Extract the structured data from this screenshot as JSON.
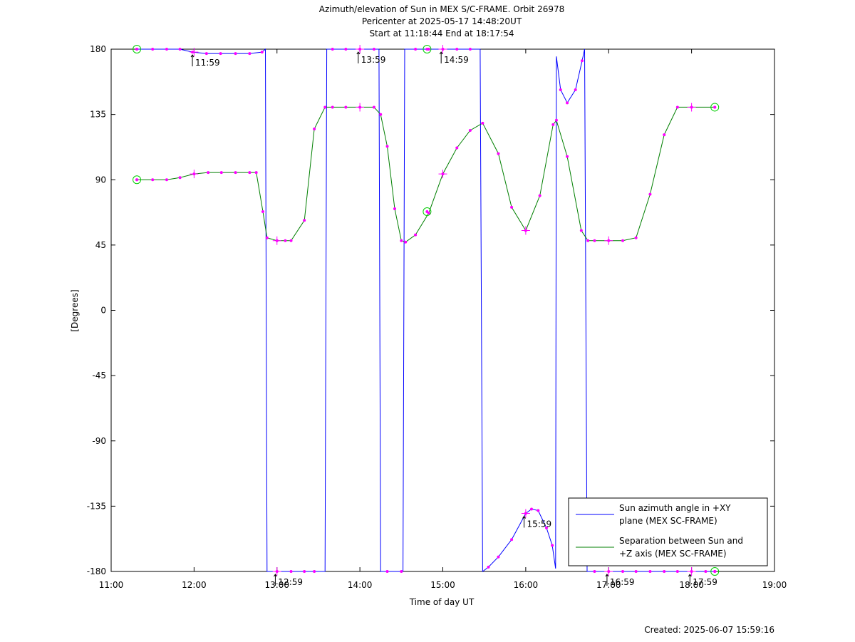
{
  "chart_data": {
    "type": "line",
    "title_lines": [
      "Azimuth/elevation of Sun in MEX S/C-FRAME.  Orbit 26978",
      "Pericenter at 2025-05-17 14:48:20UT",
      "Start at 11:18:44 End at 18:17:54"
    ],
    "xlabel": "Time of day UT",
    "ylabel": "[Degrees]",
    "footer": "Created: 2025-06-07 15:59:16",
    "xlim": [
      11.0,
      19.0
    ],
    "ylim": [
      -180,
      180
    ],
    "x_ticks": [
      11,
      12,
      13,
      14,
      15,
      16,
      17,
      18,
      19
    ],
    "x_tick_labels": [
      "11:00",
      "12:00",
      "13:00",
      "14:00",
      "15:00",
      "16:00",
      "17:00",
      "18:00",
      "19:00"
    ],
    "y_ticks": [
      180,
      135,
      90,
      45,
      0,
      -45,
      -90,
      -135,
      -180
    ],
    "y_tick_labels": [
      "180",
      "135",
      "90",
      "45",
      "0",
      "-45",
      "-90",
      "-135",
      "-180"
    ],
    "legend_position": "bottom-right",
    "series": [
      {
        "name": "Sun azimuth angle in +XY plane (MEX SC-FRAME)",
        "legend_lines": [
          "Sun azimuth angle in +XY",
          "plane (MEX SC-FRAME)"
        ],
        "color": "#0000ff",
        "x": [
          11.31,
          11.5,
          11.67,
          11.83,
          11.98,
          12.15,
          12.32,
          12.5,
          12.67,
          12.82,
          12.86,
          12.88,
          13.0,
          13.17,
          13.33,
          13.45,
          13.58,
          13.6,
          13.67,
          13.83,
          14.0,
          14.17,
          14.23,
          14.25,
          14.33,
          14.5,
          14.52,
          14.54,
          14.67,
          14.83,
          15.0,
          15.17,
          15.33,
          15.45,
          15.48,
          15.55,
          15.67,
          15.83,
          16.0,
          16.07,
          16.15,
          16.25,
          16.32,
          16.36,
          16.37,
          16.42,
          16.5,
          16.6,
          16.68,
          16.71,
          16.74,
          16.83,
          17.0,
          17.17,
          17.33,
          17.5,
          17.67,
          17.83,
          18.0,
          18.17,
          18.28
        ],
        "y": [
          180,
          180,
          180,
          180,
          178,
          177,
          177,
          177,
          177,
          178,
          180,
          -180,
          -180,
          -180,
          -180,
          -180,
          -180,
          180,
          180,
          180,
          180,
          180,
          180,
          -180,
          -180,
          -180,
          -180,
          180,
          180,
          180,
          180,
          180,
          180,
          180,
          -180,
          -177,
          -170,
          -158,
          -140,
          -137,
          -138,
          -150,
          -162,
          -178,
          175,
          152,
          143,
          152,
          172,
          180,
          -180,
          -180,
          -180,
          -180,
          -180,
          -180,
          -180,
          -180,
          -180,
          -180,
          -180
        ]
      },
      {
        "name": "Separation between Sun and +Z axis (MEX SC-FRAME)",
        "legend_lines": [
          "Separation between Sun and",
          "+Z axis (MEX SC-FRAME)"
        ],
        "color": "#007f00",
        "x": [
          11.31,
          11.5,
          11.67,
          11.83,
          12.0,
          12.17,
          12.33,
          12.5,
          12.67,
          12.75,
          12.83,
          12.88,
          13.0,
          13.1,
          13.17,
          13.33,
          13.45,
          13.58,
          13.67,
          13.83,
          14.0,
          14.17,
          14.25,
          14.33,
          14.42,
          14.5,
          14.55,
          14.67,
          14.83,
          15.0,
          15.17,
          15.33,
          15.48,
          15.67,
          15.83,
          16.0,
          16.17,
          16.33,
          16.37,
          16.5,
          16.67,
          16.75,
          16.83,
          17.0,
          17.17,
          17.33,
          17.5,
          17.67,
          17.83,
          18.0,
          18.28
        ],
        "y": [
          90,
          90,
          90,
          91.5,
          94,
          95,
          95,
          95,
          95,
          95,
          68,
          50,
          48,
          48,
          48,
          62,
          125,
          140,
          140,
          140,
          140,
          140,
          135,
          113,
          70,
          48,
          47,
          52,
          67,
          94,
          112,
          124,
          129,
          108,
          71,
          55,
          79,
          128,
          131,
          106,
          55,
          48,
          48,
          48,
          48,
          50,
          80,
          121,
          140,
          140,
          140
        ]
      }
    ],
    "markers": [
      {
        "x": 11.31,
        "y": 180,
        "kind": "circle"
      },
      {
        "x": 11.31,
        "y": 90,
        "kind": "circle"
      },
      {
        "x": 14.81,
        "y": 180,
        "kind": "circle"
      },
      {
        "x": 14.81,
        "y": 68,
        "kind": "circle"
      },
      {
        "x": 18.28,
        "y": 140,
        "kind": "circle"
      },
      {
        "x": 18.28,
        "y": -180,
        "kind": "circle"
      },
      {
        "x": 12.0,
        "y": 94,
        "kind": "plus"
      },
      {
        "x": 13.0,
        "y": 48,
        "kind": "plus"
      },
      {
        "x": 14.0,
        "y": 140,
        "kind": "plus"
      },
      {
        "x": 15.0,
        "y": 94,
        "kind": "plus"
      },
      {
        "x": 16.0,
        "y": 55,
        "kind": "plus"
      },
      {
        "x": 17.0,
        "y": 48,
        "kind": "plus"
      },
      {
        "x": 18.0,
        "y": 140,
        "kind": "plus"
      },
      {
        "x": 12.0,
        "y": 178,
        "kind": "plus"
      },
      {
        "x": 14.0,
        "y": 180,
        "kind": "plus"
      },
      {
        "x": 15.0,
        "y": 180,
        "kind": "plus"
      },
      {
        "x": 16.0,
        "y": -140,
        "kind": "plus"
      },
      {
        "x": 13.0,
        "y": -180,
        "kind": "plus"
      },
      {
        "x": 17.0,
        "y": -180,
        "kind": "plus"
      },
      {
        "x": 18.0,
        "y": -180,
        "kind": "plus"
      }
    ],
    "annotations": [
      {
        "text": "11:59",
        "x": 11.98,
        "y": 178,
        "side": "below"
      },
      {
        "text": "13:59",
        "x": 13.98,
        "y": 180,
        "side": "below"
      },
      {
        "text": "14:59",
        "x": 14.98,
        "y": 180,
        "side": "below"
      },
      {
        "text": "15:59",
        "x": 15.98,
        "y": -140,
        "side": "below"
      },
      {
        "text": "12:59",
        "x": 12.98,
        "y": -180,
        "side": "below"
      },
      {
        "text": "16:59",
        "x": 16.98,
        "y": -180,
        "side": "below"
      },
      {
        "text": "17:59",
        "x": 17.98,
        "y": -180,
        "side": "below"
      }
    ],
    "colors": {
      "dot": "#ff00ff",
      "circle": "#00cc00",
      "axis": "#000000"
    }
  }
}
